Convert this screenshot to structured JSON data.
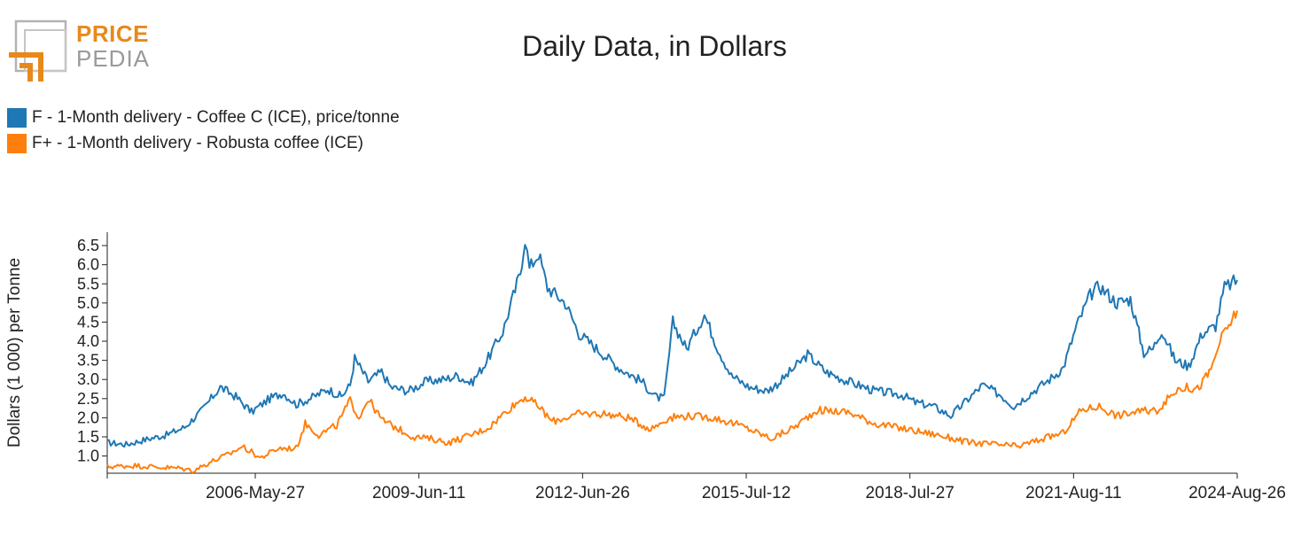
{
  "logo": {
    "word1": "PRICE",
    "word2": "PEDIA",
    "colors": {
      "accent": "#e8891b",
      "gray": "#9a9a9a"
    }
  },
  "chart_data": {
    "type": "line",
    "title": "Daily Data, in Dollars",
    "xlabel": "",
    "ylabel": "Dollars (1 000) per Tonne",
    "xlim": [
      "2003-08-26",
      "2024-08-26"
    ],
    "ylim": [
      0.55,
      6.85
    ],
    "y_ticks": [
      1.0,
      1.5,
      2.0,
      2.5,
      3.0,
      3.5,
      4.0,
      4.5,
      5.0,
      5.5,
      6.0,
      6.5
    ],
    "x_ticks": [
      "2006-May-27",
      "2009-Jun-11",
      "2012-Jun-26",
      "2015-Jul-12",
      "2018-Jul-27",
      "2021-Aug-11",
      "2024-Aug-26"
    ],
    "grid": false,
    "legend_position": "top-left",
    "series": [
      {
        "name": "F - 1-Month delivery - Coffee C (ICE), price/tonne",
        "color": "#1f77b4",
        "points": [
          [
            "2003-08-26",
            1.35
          ],
          [
            "2004-01-01",
            1.3
          ],
          [
            "2004-06-01",
            1.45
          ],
          [
            "2004-10-01",
            1.55
          ],
          [
            "2005-02-01",
            1.75
          ],
          [
            "2005-06-01",
            2.2
          ],
          [
            "2005-10-01",
            2.8
          ],
          [
            "2006-01-15",
            2.55
          ],
          [
            "2006-05-01",
            2.15
          ],
          [
            "2006-09-01",
            2.5
          ],
          [
            "2006-12-01",
            2.65
          ],
          [
            "2007-03-01",
            2.35
          ],
          [
            "2007-07-01",
            2.55
          ],
          [
            "2007-10-01",
            2.75
          ],
          [
            "2008-01-01",
            2.55
          ],
          [
            "2008-03-01",
            2.85
          ],
          [
            "2008-04-01",
            3.55
          ],
          [
            "2008-07-01",
            2.95
          ],
          [
            "2008-10-01",
            3.2
          ],
          [
            "2008-12-01",
            2.8
          ],
          [
            "2009-04-01",
            2.7
          ],
          [
            "2009-08-01",
            2.95
          ],
          [
            "2009-12-01",
            3.0
          ],
          [
            "2010-03-01",
            3.1
          ],
          [
            "2010-06-01",
            2.9
          ],
          [
            "2010-09-01",
            3.4
          ],
          [
            "2011-01-01",
            4.25
          ],
          [
            "2011-05-01",
            5.8
          ],
          [
            "2011-06-01",
            6.7
          ],
          [
            "2011-07-01",
            5.9
          ],
          [
            "2011-09-01",
            6.3
          ],
          [
            "2011-11-01",
            5.4
          ],
          [
            "2012-03-01",
            5.0
          ],
          [
            "2012-06-01",
            4.2
          ],
          [
            "2012-11-01",
            3.7
          ],
          [
            "2013-03-01",
            3.3
          ],
          [
            "2013-08-01",
            2.95
          ],
          [
            "2013-11-01",
            2.55
          ],
          [
            "2014-01-01",
            2.5
          ],
          [
            "2014-03-01",
            4.5
          ],
          [
            "2014-06-01",
            3.8
          ],
          [
            "2014-10-01",
            4.7
          ],
          [
            "2015-01-01",
            3.8
          ],
          [
            "2015-04-01",
            3.1
          ],
          [
            "2015-08-01",
            2.8
          ],
          [
            "2015-12-01",
            2.7
          ],
          [
            "2016-03-01",
            2.95
          ],
          [
            "2016-09-01",
            3.65
          ],
          [
            "2017-01-01",
            3.2
          ],
          [
            "2017-06-01",
            2.95
          ],
          [
            "2017-12-01",
            2.7
          ],
          [
            "2018-06-01",
            2.6
          ],
          [
            "2018-09-01",
            2.4
          ],
          [
            "2019-01-01",
            2.3
          ],
          [
            "2019-05-01",
            2.05
          ],
          [
            "2019-12-01",
            2.85
          ],
          [
            "2020-04-01",
            2.6
          ],
          [
            "2020-07-01",
            2.3
          ],
          [
            "2020-12-01",
            2.75
          ],
          [
            "2021-03-01",
            3.0
          ],
          [
            "2021-06-01",
            3.3
          ],
          [
            "2021-09-01",
            4.4
          ],
          [
            "2021-12-01",
            5.2
          ],
          [
            "2022-02-01",
            5.45
          ],
          [
            "2022-06-01",
            5.0
          ],
          [
            "2022-09-01",
            5.1
          ],
          [
            "2022-12-01",
            3.7
          ],
          [
            "2023-02-01",
            3.8
          ],
          [
            "2023-04-01",
            4.3
          ],
          [
            "2023-07-01",
            3.5
          ],
          [
            "2023-10-01",
            3.35
          ],
          [
            "2024-01-01",
            4.2
          ],
          [
            "2024-04-01",
            4.4
          ],
          [
            "2024-06-01",
            5.4
          ],
          [
            "2024-08-26",
            5.6
          ]
        ]
      },
      {
        "name": "F+ - 1-Month delivery - Robusta coffee (ICE)",
        "color": "#ff7f0e",
        "points": [
          [
            "2003-08-26",
            0.72
          ],
          [
            "2004-03-01",
            0.75
          ],
          [
            "2004-09-01",
            0.7
          ],
          [
            "2005-01-01",
            0.68
          ],
          [
            "2005-04-01",
            0.62
          ],
          [
            "2005-08-01",
            0.85
          ],
          [
            "2005-12-01",
            1.05
          ],
          [
            "2006-03-01",
            1.25
          ],
          [
            "2006-07-01",
            0.95
          ],
          [
            "2006-11-01",
            1.2
          ],
          [
            "2007-03-01",
            1.2
          ],
          [
            "2007-05-01",
            1.85
          ],
          [
            "2007-08-01",
            1.55
          ],
          [
            "2007-12-01",
            1.8
          ],
          [
            "2008-03-01",
            2.45
          ],
          [
            "2008-05-01",
            2.0
          ],
          [
            "2008-07-01",
            2.5
          ],
          [
            "2008-10-01",
            1.95
          ],
          [
            "2009-01-01",
            1.75
          ],
          [
            "2009-05-01",
            1.5
          ],
          [
            "2009-09-01",
            1.45
          ],
          [
            "2010-01-01",
            1.35
          ],
          [
            "2010-06-01",
            1.55
          ],
          [
            "2010-10-01",
            1.75
          ],
          [
            "2011-02-01",
            2.2
          ],
          [
            "2011-06-01",
            2.55
          ],
          [
            "2011-09-01",
            2.3
          ],
          [
            "2011-12-01",
            1.9
          ],
          [
            "2012-06-01",
            2.1
          ],
          [
            "2012-12-01",
            2.1
          ],
          [
            "2013-05-01",
            2.0
          ],
          [
            "2013-10-01",
            1.7
          ],
          [
            "2014-02-01",
            2.0
          ],
          [
            "2014-06-01",
            2.05
          ],
          [
            "2014-12-01",
            2.0
          ],
          [
            "2015-06-01",
            1.8
          ],
          [
            "2016-01-01",
            1.45
          ],
          [
            "2016-06-01",
            1.75
          ],
          [
            "2016-11-01",
            2.2
          ],
          [
            "2017-06-01",
            2.15
          ],
          [
            "2017-12-01",
            1.85
          ],
          [
            "2018-07-01",
            1.7
          ],
          [
            "2019-02-01",
            1.55
          ],
          [
            "2019-09-01",
            1.35
          ],
          [
            "2020-03-01",
            1.3
          ],
          [
            "2020-08-01",
            1.25
          ],
          [
            "2020-12-01",
            1.4
          ],
          [
            "2021-06-01",
            1.6
          ],
          [
            "2021-10-01",
            2.2
          ],
          [
            "2022-02-01",
            2.3
          ],
          [
            "2022-06-01",
            2.05
          ],
          [
            "2022-10-01",
            2.15
          ],
          [
            "2023-03-01",
            2.2
          ],
          [
            "2023-08-01",
            2.8
          ],
          [
            "2023-12-01",
            2.75
          ],
          [
            "2024-03-01",
            3.25
          ],
          [
            "2024-05-01",
            4.0
          ],
          [
            "2024-07-01",
            4.4
          ],
          [
            "2024-08-26",
            4.8
          ]
        ]
      }
    ]
  }
}
